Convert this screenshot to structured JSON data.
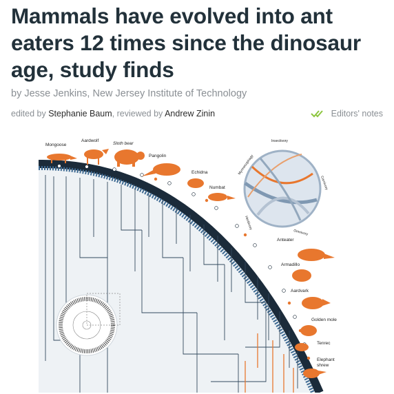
{
  "article": {
    "headline": "Mammals have evolved into ant eaters 12 times since the dinosaur age, study finds",
    "byline_prefix": "by ",
    "byline_author": "Jesse Jenkins, New Jersey Institute of Technology",
    "edited_by_label": "edited by ",
    "editor": "Stephanie Baum",
    "reviewed_by_label": ", reviewed by ",
    "reviewer": "Andrew Zinin",
    "editors_notes": "Editors' notes"
  },
  "figure": {
    "animals": [
      "Mongoose",
      "Aardwolf",
      "Sloth bear",
      "Pangolin",
      "Echidna",
      "Numbat",
      "Anteater",
      "Armadillo",
      "Aardvark",
      "Golden mole",
      "Tenrec",
      "Elephant",
      "shrew"
    ],
    "diet_ring": [
      "Insectivory",
      "Carnivory",
      "Omnivory",
      "Herbivory",
      "Myrmecophagy"
    ]
  },
  "colors": {
    "accent_green": "#8dc63f",
    "animal_orange": "#e8772e",
    "tree_blue": "#2f5d87"
  }
}
